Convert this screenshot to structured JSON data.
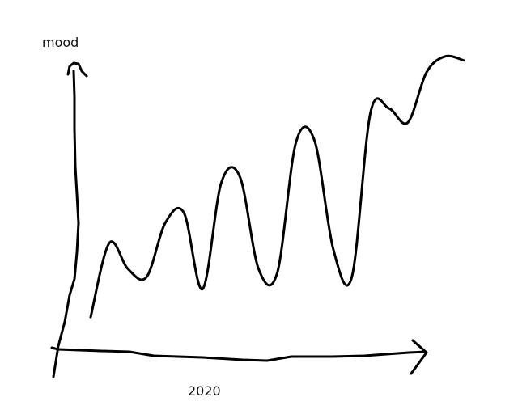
{
  "chart_data": {
    "type": "line",
    "ylabel": "mood",
    "xlabel": "2020",
    "x": [
      0,
      1,
      2,
      3,
      4,
      5,
      6,
      7,
      8,
      9,
      10,
      11,
      12,
      13,
      14,
      15,
      16,
      17,
      18,
      19,
      20
    ],
    "series": [
      {
        "values": [
          0.08,
          0.45,
          0.32,
          0.28,
          0.55,
          0.6,
          0.22,
          0.75,
          0.78,
          0.32,
          0.3,
          0.95,
          0.96,
          0.42,
          0.28,
          1.1,
          1.12,
          1.05,
          1.3,
          1.38,
          1.36
        ]
      }
    ],
    "ylim": [
      0,
      1.5
    ],
    "grid": false,
    "legend": false,
    "colors": {
      "line": "#000000",
      "background": "#ffffff"
    }
  }
}
